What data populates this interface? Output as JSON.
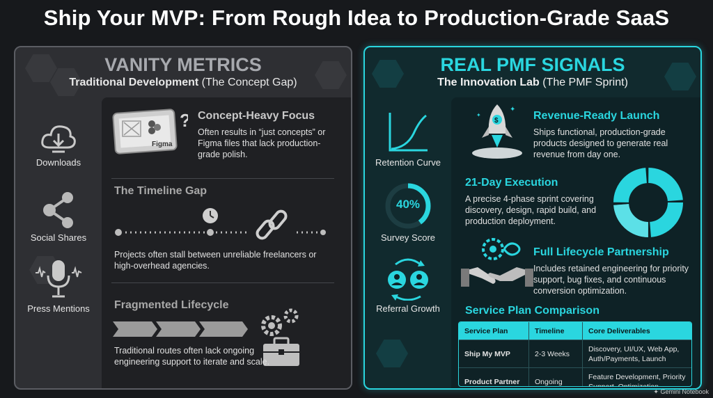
{
  "title": "Ship Your MVP: From Rough Idea to Production-Grade SaaS",
  "left": {
    "heading": "VANITY METRICS",
    "subtitle_bold": "Traditional Development",
    "subtitle_rest": " (The Concept Gap)",
    "metrics": [
      "Downloads",
      "Social Shares",
      "Press Mentions"
    ],
    "items": [
      {
        "heading": "Concept-Heavy Focus",
        "text": "Often results in “just concepts” or Figma files that lack production-grade polish.",
        "icon_label": "Figma"
      },
      {
        "heading": "The Timeline Gap",
        "text": "Projects often stall between unreliable freelancers or high-overhead agencies."
      },
      {
        "heading": "Fragmented Lifecycle",
        "text": "Traditional routes often lack ongoing engineering support to iterate and scale."
      }
    ]
  },
  "right": {
    "heading": "REAL PMF SIGNALS",
    "subtitle_bold": "The Innovation Lab",
    "subtitle_rest": " (The PMF Sprint)",
    "metrics": [
      "Retention Curve",
      "Survey Score",
      "Referral Growth"
    ],
    "survey_value": "40%",
    "survey_fraction": 0.4,
    "items": [
      {
        "heading": "Revenue-Ready Launch",
        "text": "Ships functional, production-grade products designed to generate real revenue from day one."
      },
      {
        "heading": "21-Day Execution",
        "text": "A precise 4-phase sprint covering discovery, design, rapid build, and production deployment."
      },
      {
        "heading": "Full Lifecycle Partnership",
        "text": "Includes retained engineering for priority support, bug fixes, and continuous conversion optimization."
      }
    ],
    "table_title": "Service Plan Comparison",
    "table": {
      "headers": [
        "Service Plan",
        "Timeline",
        "Core Deliverables"
      ],
      "rows": [
        [
          "Ship My MVP",
          "2-3 Weeks",
          "Discovery, UI/UX, Web App, Auth/Payments, Launch"
        ],
        [
          "Product Partner",
          "Ongoing",
          "Feature Development, Priority Support, Optimization"
        ]
      ]
    }
  },
  "watermark": "Gemini Notebook",
  "colors": {
    "accent": "#2ad6df",
    "left_bg": "#2e2f33",
    "right_bg": "#112a2e",
    "page_bg": "#17191c"
  }
}
